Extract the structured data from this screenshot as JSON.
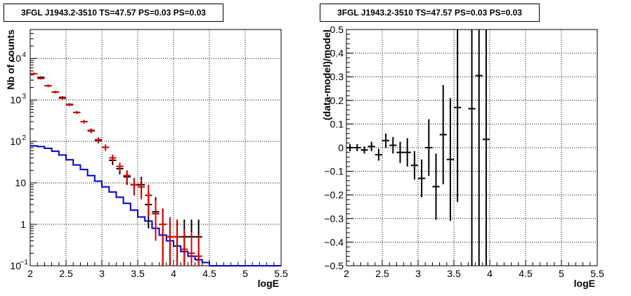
{
  "chart_data": [
    {
      "type": "line",
      "title": "3FGL J1943.2-3510 TS=47.57 PS=0.03 PS=0.03",
      "xlabel": "logE",
      "ylabel": "Nb of counts",
      "xlim": [
        2,
        5.5
      ],
      "ylim": [
        0.1,
        50000
      ],
      "yscale": "log",
      "grid": true,
      "xticks": [
        "2",
        "2.5",
        "3",
        "3.5",
        "4",
        "4.5",
        "5",
        "5.5"
      ],
      "yticks": [
        "1",
        "10",
        "10",
        "10",
        "10"
      ],
      "ytick_exponents": [
        "",
        "",
        "2",
        "3",
        "4"
      ],
      "ytick_values": [
        1,
        10,
        100,
        1000,
        10000
      ],
      "bin_edges": [
        2.0,
        2.1,
        2.2,
        2.3,
        2.4,
        2.5,
        2.6,
        2.7,
        2.8,
        2.9,
        3.0,
        3.1,
        3.2,
        3.3,
        3.4,
        3.5,
        3.6,
        3.7,
        3.8,
        3.9,
        4.0,
        4.1,
        4.2,
        4.3,
        4.4,
        4.5,
        4.6,
        4.7,
        4.8,
        4.9,
        5.0,
        5.1,
        5.2,
        5.3,
        5.4,
        5.5
      ],
      "series": [
        {
          "color": "#0000cc",
          "style": "step",
          "values": [
            78,
            75,
            68,
            58,
            47,
            36,
            27,
            21,
            15,
            11,
            8,
            6,
            4.5,
            3.2,
            2.2,
            1.5,
            1.2,
            0.8,
            0.55,
            0.4,
            0.3,
            0.22,
            0.17,
            0.14,
            0.12,
            0.1,
            0.1,
            0.1,
            0.1,
            0.1,
            0.1,
            0.1,
            0.1,
            0.1,
            0.1
          ]
        },
        {
          "color": "#000000",
          "style": "errorbar",
          "x": [
            2.15,
            2.25,
            2.35,
            2.45,
            2.55,
            2.65,
            2.75,
            2.85,
            2.95,
            3.05,
            3.15,
            3.25,
            3.35,
            3.45,
            3.55,
            3.65,
            3.75,
            3.85,
            3.95,
            4.05,
            4.15,
            4.25,
            4.35
          ],
          "y": [
            3500,
            2200,
            1550,
            1150,
            780,
            500,
            300,
            180,
            105,
            72,
            35,
            22,
            14,
            9,
            9,
            3,
            2,
            1,
            0.5,
            0.5,
            0.5,
            0.5,
            0.5
          ],
          "yerr_low": [
            200,
            150,
            100,
            80,
            50,
            40,
            30,
            20,
            15,
            12,
            8,
            6,
            5,
            4,
            4,
            2.2,
            1.6,
            0.9,
            0.45,
            0.45,
            0.45,
            0.45,
            0.45
          ],
          "yerr_high": [
            200,
            150,
            100,
            80,
            50,
            40,
            30,
            20,
            15,
            12,
            8,
            6,
            5,
            4,
            5,
            3,
            2.5,
            1.4,
            0.8,
            0.8,
            0.8,
            0.8,
            0.8
          ]
        },
        {
          "color": "#dd0000",
          "style": "errorbar",
          "x": [
            2.05,
            2.15,
            2.25,
            2.35,
            2.45,
            2.55,
            2.65,
            2.75,
            2.85,
            2.95,
            3.05,
            3.15,
            3.25,
            3.35,
            3.45,
            3.55,
            3.65,
            3.75,
            3.85,
            3.95,
            4.05,
            4.15,
            4.25,
            4.35
          ],
          "y": [
            4300,
            3300,
            2200,
            1550,
            1100,
            760,
            500,
            300,
            185,
            110,
            72,
            40,
            25,
            15,
            9,
            8,
            5,
            1.8,
            1,
            0.5,
            0.5,
            0.25,
            0.2,
            0.17
          ],
          "yerr_low": [
            300,
            200,
            150,
            100,
            80,
            50,
            40,
            30,
            20,
            15,
            12,
            8,
            6,
            5,
            4,
            4,
            3.5,
            1.4,
            0.9,
            0.45,
            0.45,
            0.24,
            0.19,
            0.16
          ],
          "yerr_high": [
            300,
            200,
            150,
            100,
            80,
            50,
            40,
            30,
            20,
            15,
            12,
            8,
            6,
            5,
            4,
            4,
            4,
            2,
            1.3,
            1,
            0.8,
            0.5,
            0.45,
            0.4
          ]
        }
      ]
    },
    {
      "type": "scatter",
      "title": "3FGL J1943.2-3510 TS=47.57 PS=0.03 PS=0.03",
      "xlabel": "logE",
      "ylabel": "(data-model)/model",
      "xlim": [
        2,
        5.5
      ],
      "ylim": [
        -0.5,
        0.5
      ],
      "grid": true,
      "xticks": [
        "2",
        "2.5",
        "3",
        "3.5",
        "4",
        "4.5",
        "5",
        "5.5"
      ],
      "yticks": [
        "−0.5",
        "−0.4",
        "−0.3",
        "−0.2",
        "−0.1",
        "0",
        "0.1",
        "0.2",
        "0.3",
        "0.4",
        "0.5"
      ],
      "series": [
        {
          "color": "#000000",
          "style": "errorbar",
          "x": [
            2.05,
            2.15,
            2.25,
            2.35,
            2.45,
            2.55,
            2.65,
            2.75,
            2.85,
            2.95,
            3.05,
            3.15,
            3.25,
            3.35,
            3.45,
            3.55,
            3.75,
            3.85,
            3.95
          ],
          "y": [
            0.0,
            0.0,
            -0.01,
            0.005,
            -0.03,
            0.03,
            0.01,
            -0.02,
            -0.02,
            -0.075,
            -0.13,
            0.0,
            -0.165,
            0.055,
            -0.05,
            0.17,
            0.165,
            0.305,
            0.035
          ],
          "yerr": [
            0.015,
            0.015,
            0.015,
            0.02,
            0.025,
            0.03,
            0.035,
            0.045,
            0.06,
            0.06,
            0.08,
            0.12,
            0.14,
            0.21,
            0.26,
            0.4,
            1.0,
            1.0,
            1.0
          ]
        }
      ]
    }
  ]
}
